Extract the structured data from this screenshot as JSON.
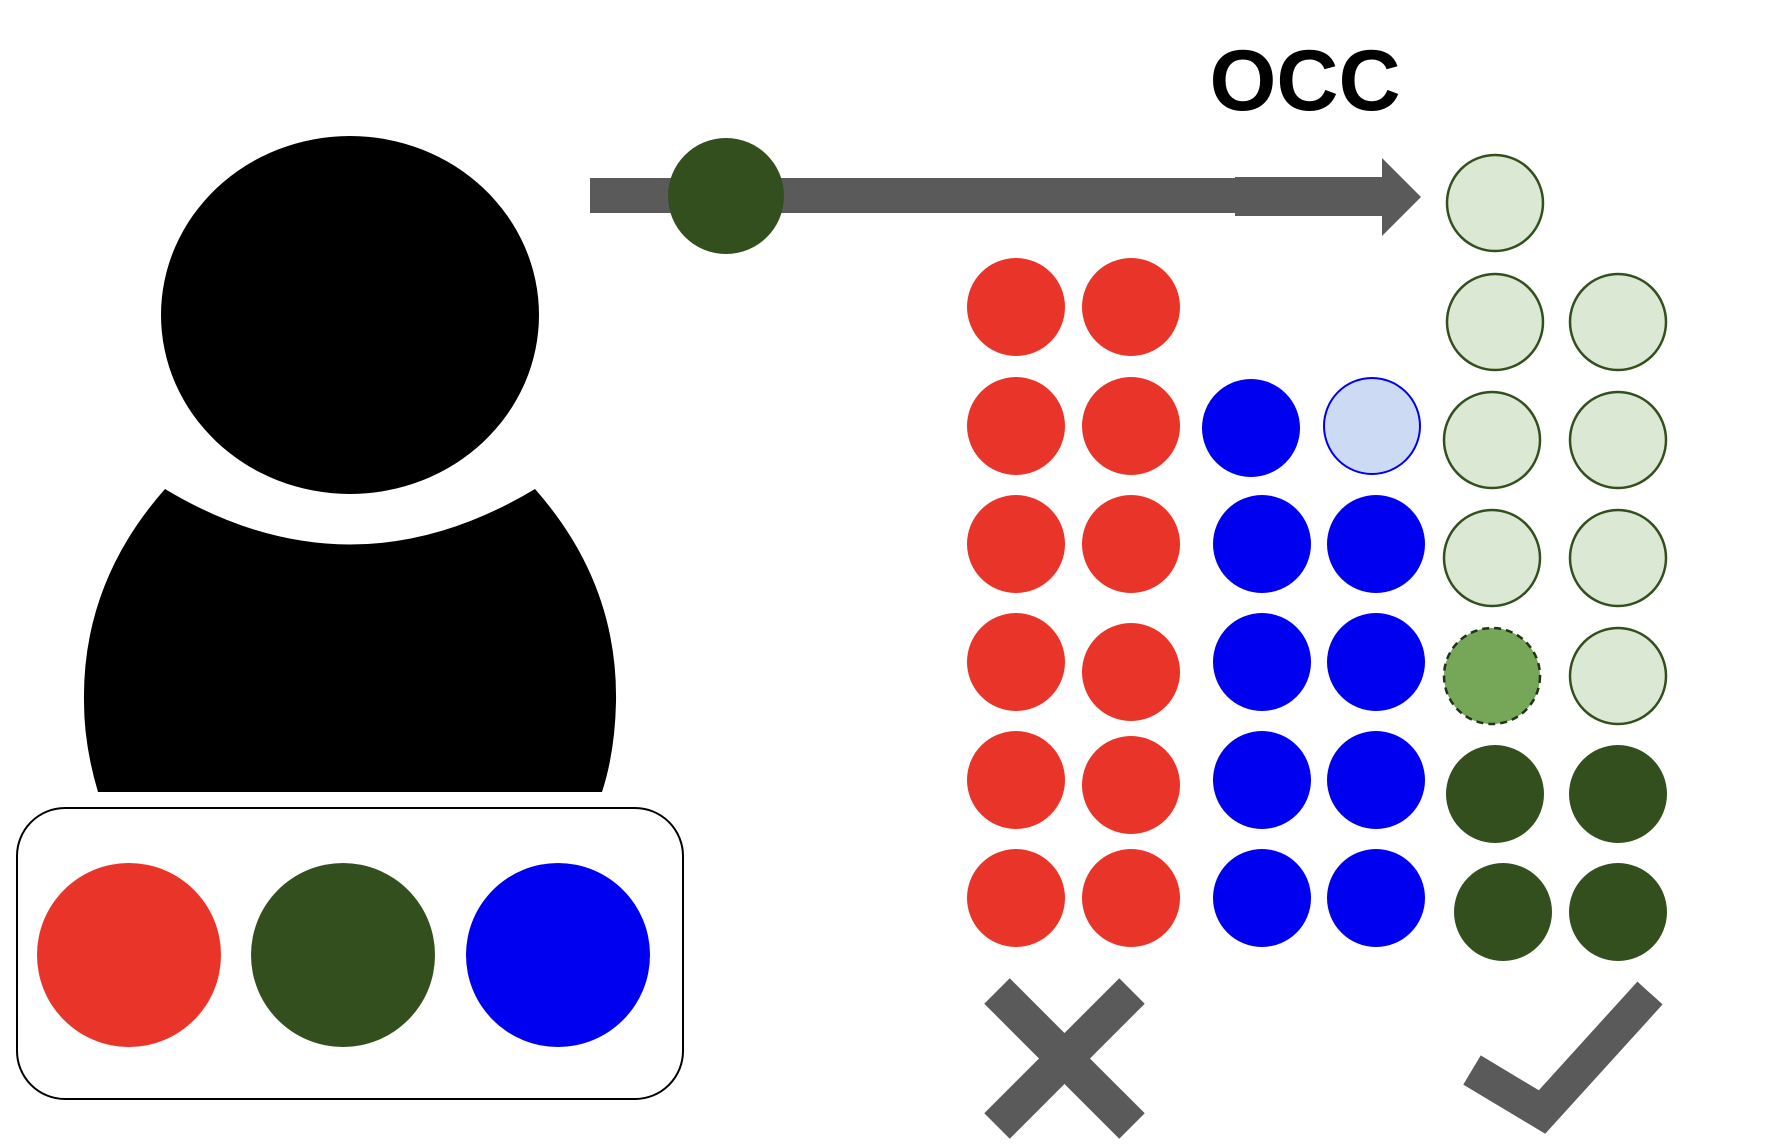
{
  "title": "OCC",
  "colors": {
    "red": "#e9342a",
    "green": "#334f1e",
    "blue": "#0000f0",
    "light_green": "#dbe8d4",
    "light_green_stroke": "#334f1e",
    "light_blue": "#ccdaf3",
    "mid_green": "#76a758",
    "arrow_gray": "#5a5a5a",
    "figure": "#000000"
  },
  "icons": {
    "person": "person-silhouette-icon",
    "reject": "cross-icon",
    "accept": "checkmark-icon"
  }
}
